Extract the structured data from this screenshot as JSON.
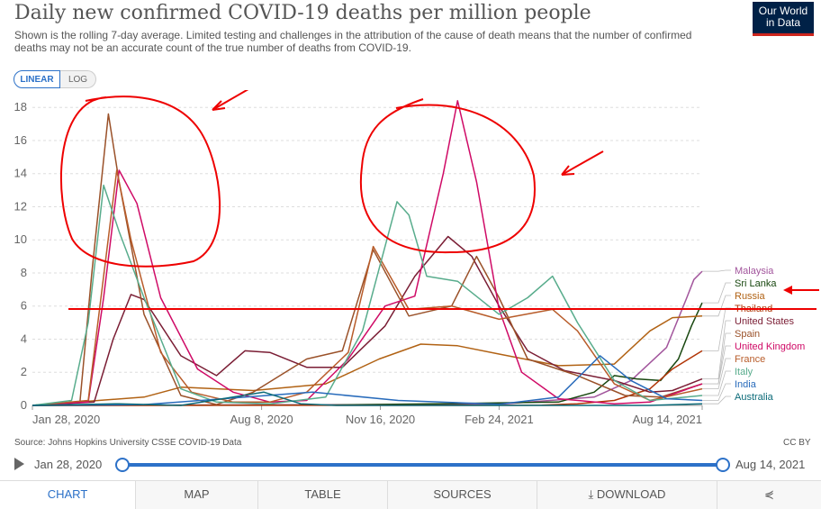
{
  "header": {
    "title": "Daily new confirmed COVID-19 deaths per million people",
    "subtitle": "Shown is the rolling 7-day average. Limited testing and challenges in the attribution of the cause of death means that the number of confirmed deaths may not be an accurate count of the true number of deaths from COVID-19.",
    "logo_line1": "Our World",
    "logo_line2": "in Data"
  },
  "controls": {
    "linear_label": "LINEAR",
    "log_label": "LOG",
    "selected": "LINEAR"
  },
  "chart_data": {
    "type": "line",
    "title": "Daily new confirmed COVID-19 deaths per million people",
    "x_tick_labels": [
      "Jan 28, 2020",
      "Aug 8, 2020",
      "Nov 16, 2020",
      "Feb 24, 2021",
      "Aug 14, 2021"
    ],
    "x_range": [
      "2020-01-28",
      "2021-08-14"
    ],
    "y_ticks": [
      0,
      2,
      4,
      6,
      8,
      10,
      12,
      14,
      16,
      18
    ],
    "ylim": [
      0,
      18.5
    ],
    "grid": "horizontal dashed",
    "legend_position": "right",
    "series": [
      {
        "name": "Malaysia",
        "color": "#a2559c",
        "values": [
          [
            "2020-01-28",
            0
          ],
          [
            "2020-06-01",
            0.02
          ],
          [
            "2020-12-01",
            0.05
          ],
          [
            "2021-03-01",
            0.1
          ],
          [
            "2021-05-15",
            0.5
          ],
          [
            "2021-06-15",
            1.5
          ],
          [
            "2021-07-15",
            3.5
          ],
          [
            "2021-08-01",
            6.5
          ],
          [
            "2021-08-07",
            7.6
          ],
          [
            "2021-08-14",
            8.1
          ]
        ]
      },
      {
        "name": "Sri Lanka",
        "color": "#18470f",
        "values": [
          [
            "2020-01-28",
            0
          ],
          [
            "2020-10-01",
            0.02
          ],
          [
            "2021-01-01",
            0.1
          ],
          [
            "2021-04-15",
            0.2
          ],
          [
            "2021-05-15",
            0.8
          ],
          [
            "2021-06-01",
            1.8
          ],
          [
            "2021-06-20",
            1.6
          ],
          [
            "2021-07-10",
            1.5
          ],
          [
            "2021-07-25",
            2.8
          ],
          [
            "2021-08-05",
            4.8
          ],
          [
            "2021-08-14",
            6.2
          ]
        ]
      },
      {
        "name": "Russia",
        "color": "#b16214",
        "values": [
          [
            "2020-01-28",
            0
          ],
          [
            "2020-05-01",
            0.5
          ],
          [
            "2020-06-01",
            1.1
          ],
          [
            "2020-08-01",
            0.9
          ],
          [
            "2020-10-01",
            1.3
          ],
          [
            "2020-11-15",
            2.8
          ],
          [
            "2020-12-20",
            3.7
          ],
          [
            "2021-01-20",
            3.6
          ],
          [
            "2021-02-24",
            3.1
          ],
          [
            "2021-04-15",
            2.4
          ],
          [
            "2021-06-01",
            2.5
          ],
          [
            "2021-07-01",
            4.5
          ],
          [
            "2021-07-20",
            5.3
          ],
          [
            "2021-08-14",
            5.4
          ]
        ]
      },
      {
        "name": "Thailand",
        "color": "#b13507",
        "values": [
          [
            "2020-01-28",
            0
          ],
          [
            "2021-04-01",
            0.01
          ],
          [
            "2021-05-01",
            0.1
          ],
          [
            "2021-06-01",
            0.3
          ],
          [
            "2021-07-01",
            1.0
          ],
          [
            "2021-07-20",
            2.2
          ],
          [
            "2021-08-14",
            3.3
          ]
        ]
      },
      {
        "name": "United States",
        "color": "#7a1d34",
        "values": [
          [
            "2020-01-28",
            0
          ],
          [
            "2020-03-20",
            0.2
          ],
          [
            "2020-04-05",
            4.0
          ],
          [
            "2020-04-20",
            6.7
          ],
          [
            "2020-05-01",
            6.4
          ],
          [
            "2020-06-01",
            3.0
          ],
          [
            "2020-07-01",
            1.8
          ],
          [
            "2020-07-25",
            3.3
          ],
          [
            "2020-08-15",
            3.2
          ],
          [
            "2020-09-15",
            2.3
          ],
          [
            "2020-10-15",
            2.3
          ],
          [
            "2020-11-20",
            4.8
          ],
          [
            "2020-12-15",
            7.8
          ],
          [
            "2021-01-12",
            10.2
          ],
          [
            "2021-02-01",
            9.0
          ],
          [
            "2021-02-24",
            6.0
          ],
          [
            "2021-03-20",
            3.3
          ],
          [
            "2021-04-20",
            2.1
          ],
          [
            "2021-06-01",
            1.5
          ],
          [
            "2021-07-01",
            0.8
          ],
          [
            "2021-07-20",
            0.9
          ],
          [
            "2021-08-14",
            1.6
          ]
        ]
      },
      {
        "name": "Spain",
        "color": "#9a5129",
        "values": [
          [
            "2020-01-28",
            0
          ],
          [
            "2020-03-08",
            0.2
          ],
          [
            "2020-03-18",
            8
          ],
          [
            "2020-04-01",
            17.6
          ],
          [
            "2020-04-10",
            13.5
          ],
          [
            "2020-05-01",
            5.5
          ],
          [
            "2020-06-01",
            0.6
          ],
          [
            "2020-07-01",
            0.05
          ],
          [
            "2020-08-01",
            0.8
          ],
          [
            "2020-09-15",
            2.8
          ],
          [
            "2020-10-15",
            3.3
          ],
          [
            "2020-11-10",
            9.4
          ],
          [
            "2020-12-10",
            5.4
          ],
          [
            "2021-01-15",
            6.0
          ],
          [
            "2021-02-05",
            9.0
          ],
          [
            "2021-02-24",
            6.5
          ],
          [
            "2021-03-20",
            2.8
          ],
          [
            "2021-05-01",
            1.8
          ],
          [
            "2021-06-10",
            0.6
          ],
          [
            "2021-07-10",
            0.5
          ],
          [
            "2021-08-14",
            1.3
          ]
        ]
      },
      {
        "name": "United Kingdom",
        "color": "#cf0a66",
        "values": [
          [
            "2020-01-28",
            0
          ],
          [
            "2020-03-15",
            0.2
          ],
          [
            "2020-03-28",
            6.5
          ],
          [
            "2020-04-10",
            14.2
          ],
          [
            "2020-04-25",
            12.2
          ],
          [
            "2020-05-15",
            6.5
          ],
          [
            "2020-06-15",
            2.2
          ],
          [
            "2020-07-15",
            0.8
          ],
          [
            "2020-08-15",
            0.2
          ],
          [
            "2020-09-15",
            0.3
          ],
          [
            "2020-10-20",
            2.8
          ],
          [
            "2020-11-20",
            6.0
          ],
          [
            "2020-12-15",
            6.6
          ],
          [
            "2021-01-08",
            14
          ],
          [
            "2021-01-20",
            18.4
          ],
          [
            "2021-02-05",
            13.5
          ],
          [
            "2021-02-24",
            5.8
          ],
          [
            "2021-03-15",
            2.0
          ],
          [
            "2021-04-15",
            0.4
          ],
          [
            "2021-06-01",
            0.1
          ],
          [
            "2021-07-01",
            0.2
          ],
          [
            "2021-08-14",
            1.3
          ]
        ]
      },
      {
        "name": "France",
        "color": "#b85c2a",
        "values": [
          [
            "2020-01-28",
            0
          ],
          [
            "2020-03-15",
            0.3
          ],
          [
            "2020-04-08",
            14.2
          ],
          [
            "2020-04-20",
            10.0
          ],
          [
            "2020-05-15",
            3.2
          ],
          [
            "2020-06-10",
            0.8
          ],
          [
            "2020-07-15",
            0.2
          ],
          [
            "2020-08-15",
            0.2
          ],
          [
            "2020-09-15",
            0.8
          ],
          [
            "2020-10-20",
            3.2
          ],
          [
            "2020-11-10",
            9.6
          ],
          [
            "2020-12-10",
            5.8
          ],
          [
            "2021-01-15",
            6.0
          ],
          [
            "2021-02-24",
            5.2
          ],
          [
            "2021-04-10",
            5.8
          ],
          [
            "2021-05-01",
            4.5
          ],
          [
            "2021-06-01",
            1.3
          ],
          [
            "2021-07-01",
            0.3
          ],
          [
            "2021-08-14",
            1.0
          ]
        ]
      },
      {
        "name": "Italy",
        "color": "#58ac8c",
        "values": [
          [
            "2020-01-28",
            0
          ],
          [
            "2020-03-01",
            0.3
          ],
          [
            "2020-03-15",
            5
          ],
          [
            "2020-03-28",
            13.3
          ],
          [
            "2020-04-10",
            10.5
          ],
          [
            "2020-05-01",
            6.5
          ],
          [
            "2020-06-01",
            1.0
          ],
          [
            "2020-07-01",
            0.2
          ],
          [
            "2020-08-15",
            0.1
          ],
          [
            "2020-10-01",
            0.5
          ],
          [
            "2020-11-01",
            4.5
          ],
          [
            "2020-11-30",
            12.3
          ],
          [
            "2020-12-10",
            11.5
          ],
          [
            "2020-12-25",
            7.8
          ],
          [
            "2021-01-20",
            7.5
          ],
          [
            "2021-02-24",
            5.5
          ],
          [
            "2021-03-20",
            6.5
          ],
          [
            "2021-04-10",
            7.8
          ],
          [
            "2021-05-01",
            5.0
          ],
          [
            "2021-06-01",
            1.5
          ],
          [
            "2021-07-01",
            0.3
          ],
          [
            "2021-08-14",
            0.6
          ]
        ]
      },
      {
        "name": "India",
        "color": "#286bbb",
        "values": [
          [
            "2020-01-28",
            0
          ],
          [
            "2020-05-01",
            0.05
          ],
          [
            "2020-09-20",
            0.8
          ],
          [
            "2020-12-01",
            0.3
          ],
          [
            "2021-02-24",
            0.07
          ],
          [
            "2021-04-15",
            0.5
          ],
          [
            "2021-05-20",
            3.0
          ],
          [
            "2021-06-15",
            1.5
          ],
          [
            "2021-07-15",
            0.4
          ],
          [
            "2021-08-14",
            0.3
          ]
        ]
      },
      {
        "name": "Australia",
        "color": "#0b6a78",
        "values": [
          [
            "2020-01-28",
            0
          ],
          [
            "2020-04-10",
            0.1
          ],
          [
            "2020-06-01",
            0.0
          ],
          [
            "2020-08-10",
            0.8
          ],
          [
            "2020-09-10",
            0.1
          ],
          [
            "2020-10-10",
            0
          ],
          [
            "2021-07-01",
            0
          ],
          [
            "2021-08-14",
            0.1
          ]
        ]
      }
    ]
  },
  "footer": {
    "source": "Source: Johns Hopkins University CSSE COVID-19 Data",
    "license": "CC BY",
    "timeline_start": "Jan 28, 2020",
    "timeline_end": "Aug 14, 2021"
  },
  "tabs": [
    "CHART",
    "MAP",
    "TABLE",
    "SOURCES",
    "DOWNLOAD"
  ],
  "icons": {
    "download": "download-icon",
    "share": "share-icon",
    "play": "play-icon"
  }
}
